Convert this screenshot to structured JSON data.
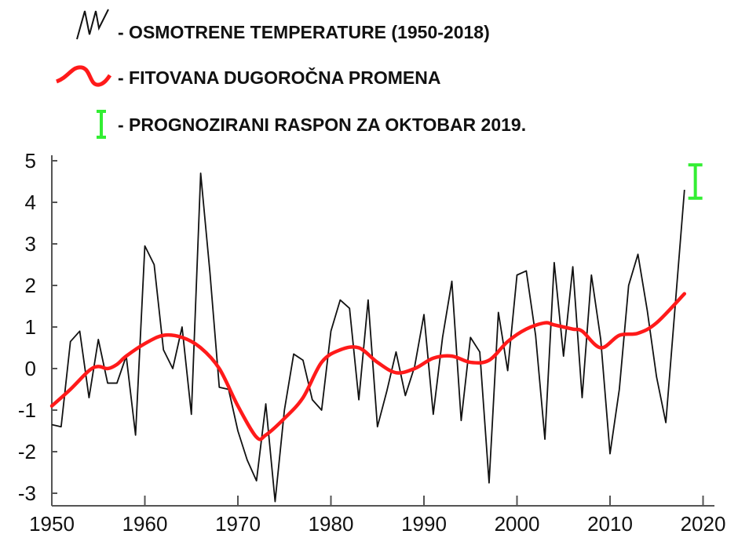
{
  "legend": {
    "observed": "- OSMOTRENE TEMPERATURE (1950-2018)",
    "fit": "- FITOVANA DUGOROČNA PROMENA",
    "forecast": "- PROGNOZIRANI RASPON ZA OKTOBAR 2019."
  },
  "colors": {
    "observed": "#111111",
    "fit": "#ff1a1a",
    "forecast": "#33ee33"
  },
  "chart_data": {
    "type": "line",
    "title": "",
    "xlabel": "",
    "ylabel": "",
    "xlim": [
      1950,
      2020
    ],
    "ylim": [
      -3.3,
      5
    ],
    "grid": false,
    "legend_position": "top",
    "x_ticks": [
      "1950",
      "1960",
      "1970",
      "1980",
      "1990",
      "2000",
      "2010",
      "2020"
    ],
    "y_ticks": [
      "5",
      "4",
      "3",
      "2",
      "1",
      "0",
      "-1",
      "-2",
      "-3"
    ],
    "series": [
      {
        "name": "- OSMOTRENE TEMPERATURE (1950-2018)",
        "x": [
          1950,
          1951,
          1952,
          1953,
          1954,
          1955,
          1956,
          1957,
          1958,
          1959,
          1960,
          1961,
          1962,
          1963,
          1964,
          1965,
          1966,
          1967,
          1968,
          1969,
          1970,
          1971,
          1972,
          1973,
          1974,
          1975,
          1976,
          1977,
          1978,
          1979,
          1980,
          1981,
          1982,
          1983,
          1984,
          1985,
          1986,
          1987,
          1988,
          1989,
          1990,
          1991,
          1992,
          1993,
          1994,
          1995,
          1996,
          1997,
          1998,
          1999,
          2000,
          2001,
          2002,
          2003,
          2004,
          2005,
          2006,
          2007,
          2008,
          2009,
          2010,
          2011,
          2012,
          2013,
          2014,
          2015,
          2016,
          2017,
          2018
        ],
        "values": [
          -1.35,
          -1.4,
          0.65,
          0.9,
          -0.7,
          0.7,
          -0.35,
          -0.35,
          0.3,
          -1.6,
          2.95,
          2.5,
          0.45,
          0.0,
          1.0,
          -1.1,
          4.7,
          2.3,
          -0.45,
          -0.5,
          -1.5,
          -2.2,
          -2.7,
          -0.85,
          -3.2,
          -1.0,
          0.35,
          0.2,
          -0.75,
          -1.0,
          0.9,
          1.65,
          1.45,
          -0.75,
          1.65,
          -1.4,
          -0.55,
          0.4,
          -0.65,
          0.05,
          1.3,
          -1.1,
          0.75,
          2.1,
          -1.25,
          0.75,
          0.4,
          -2.75,
          1.35,
          -0.05,
          2.25,
          2.35,
          0.8,
          -1.7,
          2.55,
          0.3,
          2.45,
          -0.7,
          2.25,
          0.7,
          -2.05,
          -0.5,
          2.0,
          2.75,
          1.4,
          -0.2,
          -1.3,
          1.5,
          4.3
        ]
      },
      {
        "name": "- FITOVANA DUGOROČNA PROMENA",
        "x": [
          1950,
          1952,
          1954,
          1955,
          1956,
          1957,
          1958,
          1960,
          1962,
          1964,
          1966,
          1968,
          1970,
          1972,
          1973,
          1975,
          1977,
          1979,
          1981,
          1983,
          1985,
          1987,
          1989,
          1991,
          1993,
          1995,
          1997,
          1999,
          2001,
          2003,
          2004,
          2006,
          2007,
          2009,
          2011,
          2013,
          2015,
          2018
        ],
        "values": [
          -0.9,
          -0.5,
          -0.05,
          0.05,
          0.0,
          0.1,
          0.3,
          0.6,
          0.8,
          0.75,
          0.5,
          0.0,
          -0.9,
          -1.65,
          -1.6,
          -1.2,
          -0.7,
          0.15,
          0.45,
          0.5,
          0.15,
          -0.1,
          0.0,
          0.25,
          0.3,
          0.15,
          0.2,
          0.65,
          0.95,
          1.1,
          1.05,
          0.95,
          0.9,
          0.5,
          0.8,
          0.85,
          1.1,
          1.8
        ]
      },
      {
        "name": "- PROGNOZIRANI RASPON ZA OKTOBAR 2019.",
        "type": "range",
        "x": 2019,
        "low": 4.1,
        "high": 4.9
      }
    ]
  }
}
